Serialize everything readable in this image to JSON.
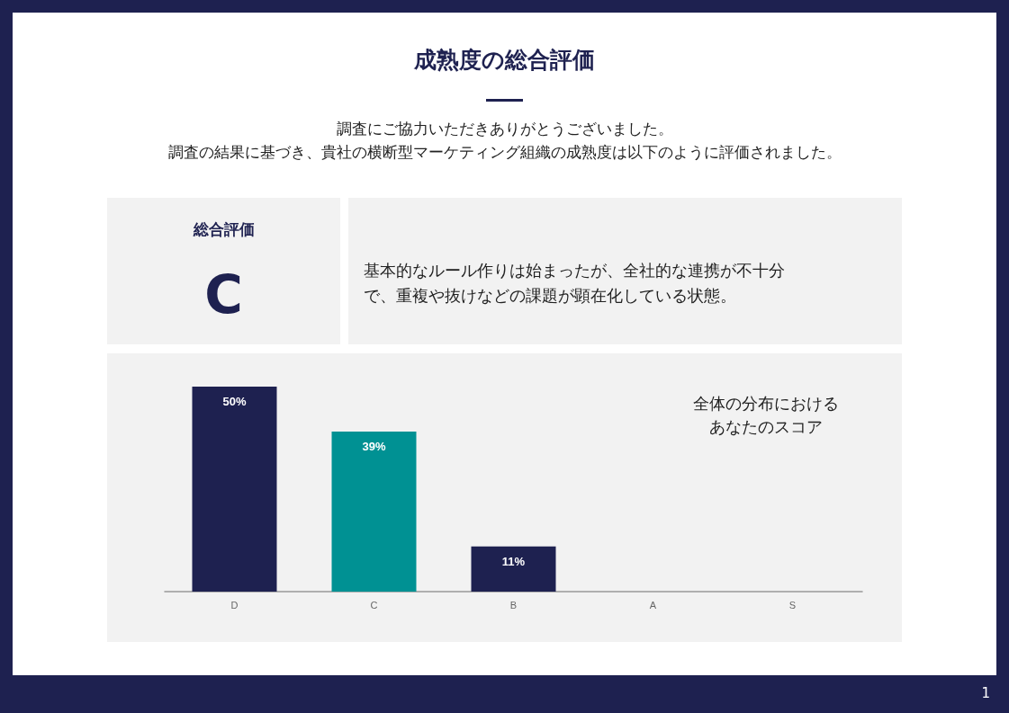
{
  "chart_data": {
    "type": "bar",
    "title": "成熟度の総合評価",
    "subtitle": "調査にご協力いただきありがとうございました。",
    "categories": [
      "D",
      "C",
      "B",
      "A",
      "S"
    ],
    "values": [
      50,
      39,
      11,
      0,
      0
    ],
    "colors": [
      "#1e2150",
      "#009193",
      "#1e2150",
      "#1e2150",
      "#1e2150"
    ],
    "value_labels": [
      "50%",
      "39%",
      "11%",
      null,
      null
    ],
    "annotations": [
      "総合評価",
      "C",
      "基本的なルール作りは始まったが、全社的な連携が不十分で、重複や抜けなどの課題が顕在化している状態。",
      "全体の分布におけるあなたのスコア",
      "1",
      "調査の結果に基づき、貴社の横断型マーケティング組織の成熟度は以下のように評価されました。"
    ]
  }
}
